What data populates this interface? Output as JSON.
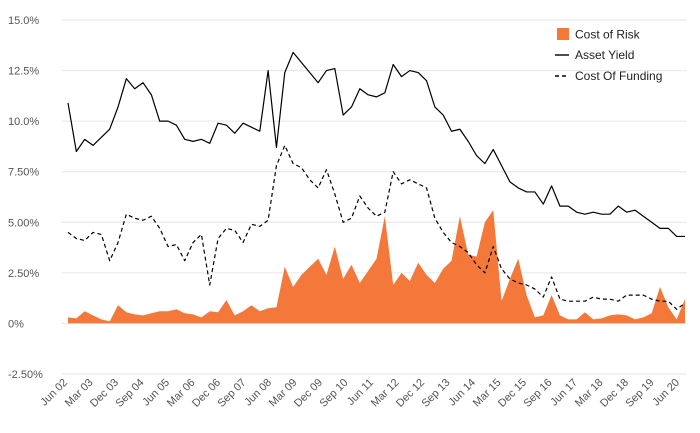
{
  "chart_data": {
    "type": "line",
    "title": "",
    "xlabel": "",
    "ylabel": "",
    "ylim": [
      -0.025,
      0.15
    ],
    "y_ticks": [
      "-2.50%",
      "0%",
      "2.50%",
      "5.00%",
      "7.50%",
      "10.0%",
      "12.5%",
      "15.0%"
    ],
    "y_tick_values": [
      -0.025,
      0,
      0.025,
      0.05,
      0.075,
      0.1,
      0.125,
      0.15
    ],
    "x_tick_labels": [
      "Jun 02",
      "Mar 03",
      "Dec 03",
      "Sep 04",
      "Jun 05",
      "Mar 06",
      "Dec 06",
      "Sep 07",
      "Jun 08",
      "Mar 09",
      "Dec 09",
      "Sep 10",
      "Jun 11",
      "Mar 12",
      "Dec 12",
      "Sep 13",
      "Jun 14",
      "Mar 15",
      "Dec 15",
      "Sep 16",
      "Jun 17",
      "Mar 18",
      "Dec 18",
      "Sep 19",
      "Jun 20"
    ],
    "grid": true,
    "legend_position": "top-right",
    "colors": {
      "cost_of_risk": "#F4783A",
      "asset_yield": "#000000",
      "cost_of_funding": "#000000",
      "grid": "#e6e6e6"
    },
    "legend": [
      {
        "label": "Cost of Risk",
        "style": "area"
      },
      {
        "label": "Asset Yield",
        "style": "solid"
      },
      {
        "label": "Cost Of Funding",
        "style": "dashed"
      }
    ],
    "series": [
      {
        "name": "Cost of Risk",
        "style": "area",
        "values": [
          0.003,
          0.0025,
          0.006,
          0.004,
          0.002,
          0.001,
          0.009,
          0.0055,
          0.0045,
          0.004,
          0.005,
          0.006,
          0.006,
          0.007,
          0.005,
          0.0045,
          0.003,
          0.006,
          0.0055,
          0.0115,
          0.004,
          0.006,
          0.009,
          0.006,
          0.0075,
          0.008,
          0.028,
          0.018,
          0.024,
          0.028,
          0.032,
          0.024,
          0.038,
          0.022,
          0.029,
          0.02,
          0.026,
          0.032,
          0.053,
          0.019,
          0.025,
          0.021,
          0.03,
          0.024,
          0.02,
          0.027,
          0.031,
          0.053,
          0.034,
          0.033,
          0.05,
          0.056,
          0.011,
          0.022,
          0.032,
          0.014,
          0.003,
          0.004,
          0.014,
          0.004,
          0.002,
          0.002,
          0.0055,
          0.002,
          0.0025,
          0.004,
          0.0045,
          0.004,
          0.002,
          0.003,
          0.005,
          0.018,
          0.008,
          0.002,
          0.012
        ]
      },
      {
        "name": "Asset Yield",
        "style": "solid",
        "values": [
          0.109,
          0.085,
          0.091,
          0.088,
          0.092,
          0.096,
          0.107,
          0.121,
          0.116,
          0.119,
          0.113,
          0.1,
          0.1,
          0.098,
          0.091,
          0.09,
          0.091,
          0.089,
          0.099,
          0.098,
          0.094,
          0.099,
          0.097,
          0.095,
          0.125,
          0.087,
          0.124,
          0.134,
          0.129,
          0.124,
          0.119,
          0.125,
          0.126,
          0.103,
          0.107,
          0.116,
          0.113,
          0.112,
          0.114,
          0.128,
          0.122,
          0.125,
          0.124,
          0.12,
          0.107,
          0.103,
          0.095,
          0.096,
          0.09,
          0.083,
          0.079,
          0.086,
          0.078,
          0.07,
          0.067,
          0.065,
          0.065,
          0.059,
          0.068,
          0.058,
          0.058,
          0.055,
          0.054,
          0.055,
          0.054,
          0.054,
          0.058,
          0.055,
          0.056,
          0.053,
          0.05,
          0.047,
          0.047,
          0.043,
          0.043
        ]
      },
      {
        "name": "Cost Of Funding",
        "style": "dashed",
        "values": [
          0.045,
          0.042,
          0.041,
          0.045,
          0.044,
          0.031,
          0.04,
          0.054,
          0.052,
          0.051,
          0.053,
          0.047,
          0.038,
          0.039,
          0.031,
          0.04,
          0.044,
          0.019,
          0.042,
          0.047,
          0.046,
          0.04,
          0.049,
          0.048,
          0.051,
          0.078,
          0.088,
          0.079,
          0.077,
          0.071,
          0.067,
          0.076,
          0.064,
          0.05,
          0.052,
          0.063,
          0.057,
          0.053,
          0.055,
          0.075,
          0.069,
          0.071,
          0.069,
          0.067,
          0.052,
          0.045,
          0.04,
          0.038,
          0.035,
          0.029,
          0.025,
          0.038,
          0.027,
          0.022,
          0.02,
          0.019,
          0.017,
          0.013,
          0.023,
          0.012,
          0.011,
          0.011,
          0.011,
          0.013,
          0.012,
          0.012,
          0.011,
          0.014,
          0.014,
          0.014,
          0.012,
          0.011,
          0.011,
          0.007,
          0.01
        ]
      }
    ]
  }
}
